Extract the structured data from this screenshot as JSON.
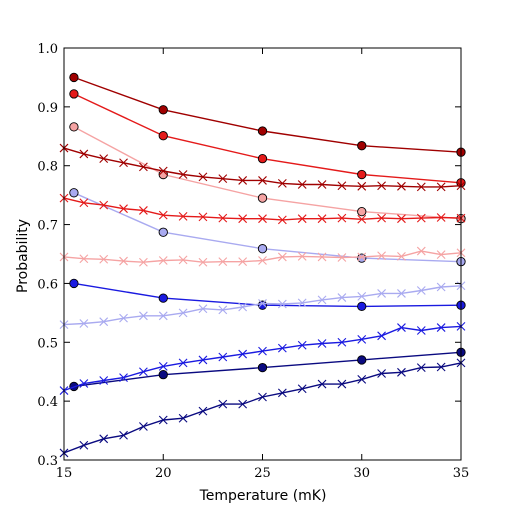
{
  "chart_data": {
    "type": "line",
    "title": "",
    "xlabel": "Temperature (mK)",
    "ylabel": "Probability",
    "xlim": [
      15,
      35
    ],
    "ylim": [
      0.3,
      1.0
    ],
    "xticks": [
      15,
      20,
      25,
      30,
      35
    ],
    "xtick_labels": [
      "15",
      "20",
      "25",
      "30",
      "35"
    ],
    "yticks": [
      0.3,
      0.4,
      0.5,
      0.6,
      0.7,
      0.8,
      0.9,
      1.0
    ],
    "ytick_labels": [
      "0.3",
      "0.4",
      "0.5",
      "0.6",
      "0.7",
      "0.8",
      "0.9",
      "1.0"
    ],
    "grid": false,
    "legend": "none",
    "series": [
      {
        "marker": "circle",
        "color": "#a00000",
        "x": [
          15.5,
          20,
          25,
          30,
          35
        ],
        "y": [
          0.95,
          0.895,
          0.859,
          0.834,
          0.823
        ]
      },
      {
        "marker": "circle",
        "color": "#e41a1a",
        "x": [
          15.5,
          20,
          25,
          30,
          35
        ],
        "y": [
          0.922,
          0.851,
          0.812,
          0.785,
          0.771
        ]
      },
      {
        "marker": "circle",
        "color": "#f5a3a3",
        "x": [
          15.5,
          20,
          25,
          30,
          35
        ],
        "y": [
          0.866,
          0.785,
          0.745,
          0.722,
          0.71
        ]
      },
      {
        "marker": "circle",
        "color": "#a9aaf0",
        "x": [
          15.5,
          20,
          25,
          30,
          35
        ],
        "y": [
          0.754,
          0.687,
          0.659,
          0.643,
          0.637
        ]
      },
      {
        "marker": "circle",
        "color": "#1a1ae0",
        "x": [
          15.5,
          20,
          25,
          30,
          35
        ],
        "y": [
          0.6,
          0.575,
          0.563,
          0.561,
          0.563
        ]
      },
      {
        "marker": "circle",
        "color": "#0a0a80",
        "x": [
          15.5,
          20,
          25,
          30,
          35
        ],
        "y": [
          0.425,
          0.445,
          0.457,
          0.47,
          0.483
        ]
      },
      {
        "marker": "x",
        "color": "#a00000",
        "x": [
          15,
          16,
          17,
          18,
          19,
          20,
          21,
          22,
          23,
          24,
          25,
          26,
          27,
          28,
          29,
          30,
          31,
          32,
          33,
          34,
          35
        ],
        "y": [
          0.83,
          0.82,
          0.812,
          0.805,
          0.798,
          0.791,
          0.785,
          0.781,
          0.778,
          0.775,
          0.775,
          0.77,
          0.768,
          0.768,
          0.766,
          0.765,
          0.766,
          0.765,
          0.764,
          0.764,
          0.766
        ]
      },
      {
        "marker": "x",
        "color": "#e41a1a",
        "x": [
          15,
          16,
          17,
          18,
          19,
          20,
          21,
          22,
          23,
          24,
          25,
          26,
          27,
          28,
          29,
          30,
          31,
          32,
          33,
          34,
          35
        ],
        "y": [
          0.745,
          0.737,
          0.733,
          0.727,
          0.724,
          0.716,
          0.714,
          0.713,
          0.711,
          0.71,
          0.71,
          0.708,
          0.71,
          0.71,
          0.711,
          0.709,
          0.711,
          0.71,
          0.711,
          0.712,
          0.711
        ]
      },
      {
        "marker": "x",
        "color": "#f5a3a3",
        "x": [
          15,
          16,
          17,
          18,
          19,
          20,
          21,
          22,
          23,
          24,
          25,
          26,
          27,
          28,
          29,
          30,
          31,
          32,
          33,
          34,
          35
        ],
        "y": [
          0.645,
          0.642,
          0.641,
          0.638,
          0.636,
          0.639,
          0.64,
          0.636,
          0.637,
          0.637,
          0.639,
          0.645,
          0.646,
          0.645,
          0.644,
          0.645,
          0.647,
          0.646,
          0.655,
          0.649,
          0.652
        ]
      },
      {
        "marker": "x",
        "color": "#a9aaf0",
        "x": [
          15,
          16,
          17,
          18,
          19,
          20,
          21,
          22,
          23,
          24,
          25,
          26,
          27,
          28,
          29,
          30,
          31,
          32,
          33,
          34,
          35
        ],
        "y": [
          0.53,
          0.532,
          0.535,
          0.541,
          0.545,
          0.545,
          0.55,
          0.557,
          0.555,
          0.56,
          0.566,
          0.565,
          0.567,
          0.572,
          0.576,
          0.578,
          0.583,
          0.583,
          0.588,
          0.594,
          0.596
        ]
      },
      {
        "marker": "x",
        "color": "#1a1ae0",
        "x": [
          15,
          16,
          17,
          18,
          19,
          20,
          21,
          22,
          23,
          24,
          25,
          26,
          27,
          28,
          29,
          30,
          31,
          32,
          33,
          34,
          35
        ],
        "y": [
          0.418,
          0.43,
          0.435,
          0.44,
          0.45,
          0.459,
          0.465,
          0.47,
          0.475,
          0.48,
          0.485,
          0.49,
          0.495,
          0.498,
          0.5,
          0.505,
          0.511,
          0.525,
          0.52,
          0.525,
          0.527
        ]
      },
      {
        "marker": "x",
        "color": "#0a0a80",
        "x": [
          15,
          16,
          17,
          18,
          19,
          20,
          21,
          22,
          23,
          24,
          25,
          26,
          27,
          28,
          29,
          30,
          31,
          32,
          33,
          34,
          35
        ],
        "y": [
          0.312,
          0.325,
          0.336,
          0.342,
          0.357,
          0.368,
          0.371,
          0.383,
          0.395,
          0.395,
          0.407,
          0.414,
          0.421,
          0.429,
          0.429,
          0.437,
          0.447,
          0.449,
          0.457,
          0.458,
          0.465
        ]
      }
    ]
  }
}
